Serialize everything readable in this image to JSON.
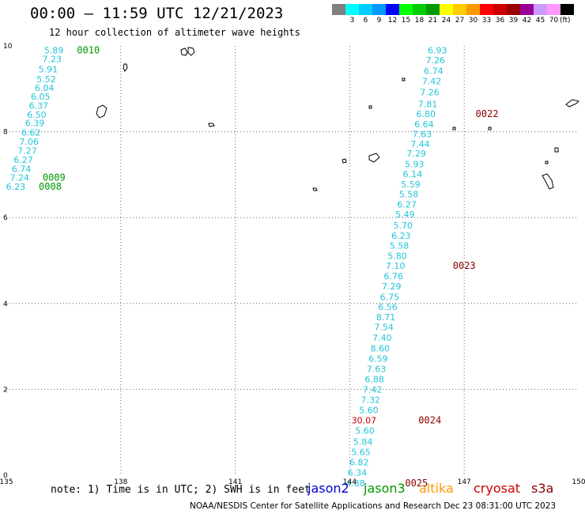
{
  "title": "00:00 – 11:59 UTC 12/21/2023",
  "subtitle": "12 hour collection of altimeter wave heights",
  "note": "note: 1) Time is in UTC; 2) SWH is in feet",
  "credit": "NOAA/NESDIS Center for Satellite Applications and Research   Dec 23 08:31:00 UTC 2023",
  "satellites": [
    {
      "name": "jason2",
      "color": "#0000cc"
    },
    {
      "name": "jason3",
      "color": "#009900"
    },
    {
      "name": "altika",
      "color": "#ff9900"
    },
    {
      "name": "cryosat",
      "color": "#cc0000"
    },
    {
      "name": "s3a",
      "color": "#880000"
    }
  ],
  "color_scale": {
    "unit": "(ft)",
    "swatches": [
      {
        "label": "",
        "color": "#808080"
      },
      {
        "label": "3",
        "color": "#00ffff"
      },
      {
        "label": "6",
        "color": "#00ccff"
      },
      {
        "label": "9",
        "color": "#0099ff"
      },
      {
        "label": "12",
        "color": "#0000ff"
      },
      {
        "label": "15",
        "color": "#00ff00"
      },
      {
        "label": "18",
        "color": "#00cc00"
      },
      {
        "label": "21",
        "color": "#009900"
      },
      {
        "label": "24",
        "color": "#ffff00"
      },
      {
        "label": "27",
        "color": "#ffcc00"
      },
      {
        "label": "30",
        "color": "#ff9900"
      },
      {
        "label": "33",
        "color": "#ff0000"
      },
      {
        "label": "36",
        "color": "#cc0000"
      },
      {
        "label": "39",
        "color": "#990000"
      },
      {
        "label": "42",
        "color": "#990099"
      },
      {
        "label": "45",
        "color": "#cc99ff"
      },
      {
        "label": "70",
        "color": "#ff99ff"
      },
      {
        "label": "",
        "color": "#000000"
      }
    ]
  },
  "axes": {
    "lon": {
      "min": 135,
      "max": 150,
      "ticks": [
        "135",
        "138",
        "141",
        "144",
        "147",
        "150"
      ]
    },
    "lat": {
      "min": 0,
      "max": 10,
      "ticks": [
        "0",
        "2",
        "4",
        "6",
        "8",
        "10"
      ]
    }
  },
  "tracks": [
    {
      "id": "track-west",
      "points": [
        {
          "lon": 136.5,
          "lat": 9.9,
          "swh": "5.89"
        },
        {
          "lon": 136.45,
          "lat": 9.7,
          "swh": "7.23"
        },
        {
          "lon": 136.35,
          "lat": 9.46,
          "swh": "5.91"
        },
        {
          "lon": 136.3,
          "lat": 9.23,
          "swh": "5.52"
        },
        {
          "lon": 136.25,
          "lat": 9.02,
          "swh": "6.04"
        },
        {
          "lon": 136.15,
          "lat": 8.82,
          "swh": "6.05"
        },
        {
          "lon": 136.1,
          "lat": 8.61,
          "swh": "6.37"
        },
        {
          "lon": 136.05,
          "lat": 8.4,
          "swh": "6.50"
        },
        {
          "lon": 136.0,
          "lat": 8.2,
          "swh": "6.39"
        },
        {
          "lon": 135.9,
          "lat": 7.98,
          "swh": "6.62"
        },
        {
          "lon": 135.85,
          "lat": 7.77,
          "swh": "7.06"
        },
        {
          "lon": 135.8,
          "lat": 7.56,
          "swh": "7.27"
        },
        {
          "lon": 135.7,
          "lat": 7.35,
          "swh": "6.27"
        },
        {
          "lon": 135.65,
          "lat": 7.14,
          "swh": "6.74"
        },
        {
          "lon": 135.6,
          "lat": 6.93,
          "swh": "7.24"
        },
        {
          "lon": 135.5,
          "lat": 6.72,
          "swh": "6.23"
        }
      ]
    },
    {
      "id": "track-east",
      "points": [
        {
          "lon": 146.55,
          "lat": 9.9,
          "swh": "6.93"
        },
        {
          "lon": 146.5,
          "lat": 9.67,
          "swh": "7.26"
        },
        {
          "lon": 146.45,
          "lat": 9.42,
          "swh": "6.74"
        },
        {
          "lon": 146.4,
          "lat": 9.18,
          "swh": "7.42"
        },
        {
          "lon": 146.35,
          "lat": 8.92,
          "swh": "7.26"
        },
        {
          "lon": 146.3,
          "lat": 8.65,
          "swh": "7.81"
        },
        {
          "lon": 146.25,
          "lat": 8.42,
          "swh": "6.80"
        },
        {
          "lon": 146.2,
          "lat": 8.18,
          "swh": "6.64"
        },
        {
          "lon": 146.15,
          "lat": 7.95,
          "swh": "7.63"
        },
        {
          "lon": 146.1,
          "lat": 7.72,
          "swh": "7.44"
        },
        {
          "lon": 146.0,
          "lat": 7.5,
          "swh": "7.29"
        },
        {
          "lon": 145.95,
          "lat": 7.25,
          "swh": "5.93"
        },
        {
          "lon": 145.9,
          "lat": 7.02,
          "swh": "6.14"
        },
        {
          "lon": 145.85,
          "lat": 6.78,
          "swh": "5.59"
        },
        {
          "lon": 145.8,
          "lat": 6.55,
          "swh": "5.58"
        },
        {
          "lon": 145.75,
          "lat": 6.31,
          "swh": "6.27"
        },
        {
          "lon": 145.7,
          "lat": 6.08,
          "swh": "5.49"
        },
        {
          "lon": 145.65,
          "lat": 5.82,
          "swh": "5.70"
        },
        {
          "lon": 145.6,
          "lat": 5.58,
          "swh": "6.23"
        },
        {
          "lon": 145.55,
          "lat": 5.35,
          "swh": "5.58"
        },
        {
          "lon": 145.5,
          "lat": 5.11,
          "swh": "5.80"
        },
        {
          "lon": 145.45,
          "lat": 4.88,
          "swh": "7.10"
        },
        {
          "lon": 145.4,
          "lat": 4.64,
          "swh": "6.76"
        },
        {
          "lon": 145.35,
          "lat": 4.4,
          "swh": "7.29"
        },
        {
          "lon": 145.3,
          "lat": 4.15,
          "swh": "6.75"
        },
        {
          "lon": 145.25,
          "lat": 3.92,
          "swh": "6.56"
        },
        {
          "lon": 145.2,
          "lat": 3.68,
          "swh": "8.71"
        },
        {
          "lon": 145.15,
          "lat": 3.45,
          "swh": "7.54"
        },
        {
          "lon": 145.1,
          "lat": 3.2,
          "swh": "7.40"
        },
        {
          "lon": 145.05,
          "lat": 2.96,
          "swh": "8.60"
        },
        {
          "lon": 145.0,
          "lat": 2.72,
          "swh": "6.59"
        },
        {
          "lon": 144.95,
          "lat": 2.48,
          "swh": "7.63"
        },
        {
          "lon": 144.9,
          "lat": 2.24,
          "swh": "6.88"
        },
        {
          "lon": 144.85,
          "lat": 2.0,
          "swh": "7.42"
        },
        {
          "lon": 144.8,
          "lat": 1.76,
          "swh": "7.32"
        },
        {
          "lon": 144.75,
          "lat": 1.52,
          "swh": "5.60"
        },
        {
          "lon": 144.7,
          "lat": 1.28,
          "swh": "30.07",
          "color": "#cc0000"
        },
        {
          "lon": 144.65,
          "lat": 1.04,
          "swh": "5.60"
        },
        {
          "lon": 144.6,
          "lat": 0.78,
          "swh": "5.84"
        },
        {
          "lon": 144.55,
          "lat": 0.54,
          "swh": "5.65"
        },
        {
          "lon": 144.5,
          "lat": 0.3,
          "swh": "6.82"
        },
        {
          "lon": 144.45,
          "lat": 0.06,
          "swh": "6.34"
        },
        {
          "lon": 144.4,
          "lat": -0.18,
          "swh": "4.88"
        }
      ]
    }
  ],
  "time_labels": [
    {
      "text": "0010",
      "lon": 136.85,
      "lat": 9.9,
      "color": "#009900"
    },
    {
      "text": "0009",
      "lon": 135.95,
      "lat": 6.93,
      "color": "#009900"
    },
    {
      "text": "0008",
      "lon": 135.85,
      "lat": 6.72,
      "color": "#009900"
    },
    {
      "text": "0022",
      "lon": 147.3,
      "lat": 8.42,
      "color": "#880000"
    },
    {
      "text": "0023",
      "lon": 146.7,
      "lat": 4.88,
      "color": "#880000"
    },
    {
      "text": "0024",
      "lon": 145.8,
      "lat": 1.28,
      "color": "#880000"
    },
    {
      "text": "0025",
      "lon": 145.45,
      "lat": -0.18,
      "color": "#880000"
    }
  ]
}
